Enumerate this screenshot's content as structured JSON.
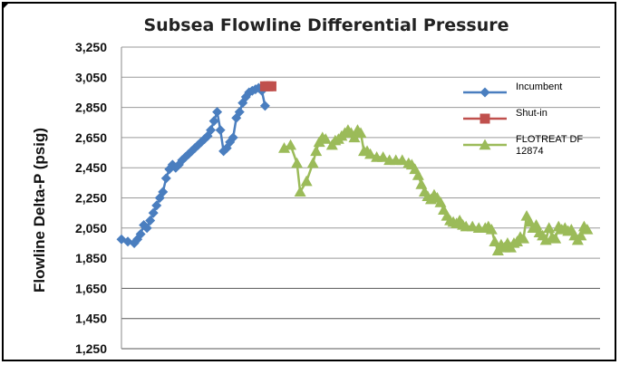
{
  "chart_data": {
    "type": "line",
    "title": "Subsea Flowline Differential Pressure",
    "ylabel": "Flowline Delta-P (psig)",
    "xlabel": "",
    "ylim": [
      1250,
      3250
    ],
    "yticks": [
      1250,
      1450,
      1650,
      1850,
      2050,
      2250,
      2450,
      2650,
      2850,
      3050,
      3250
    ],
    "ytick_labels": [
      "1,250",
      "1,450",
      "1,650",
      "1,850",
      "2,050",
      "2,250",
      "2,450",
      "2,650",
      "2,850",
      "3,050",
      "3,250"
    ],
    "x_axis_labels": false,
    "grid": "horizontal",
    "legend_position": "right",
    "series": [
      {
        "name": "Incumbent",
        "color": "#4a7ebf",
        "marker": "diamond",
        "values": [
          [
            0,
            1975
          ],
          [
            2,
            1960
          ],
          [
            4,
            1950
          ],
          [
            5,
            1975
          ],
          [
            6,
            2010
          ],
          [
            7,
            2070
          ],
          [
            8,
            2050
          ],
          [
            9,
            2100
          ],
          [
            10,
            2150
          ],
          [
            11,
            2200
          ],
          [
            12,
            2250
          ],
          [
            13,
            2290
          ],
          [
            14,
            2380
          ],
          [
            15,
            2440
          ],
          [
            16,
            2470
          ],
          [
            17,
            2450
          ],
          [
            18,
            2470
          ],
          [
            19,
            2500
          ],
          [
            20,
            2520
          ],
          [
            21,
            2540
          ],
          [
            22,
            2560
          ],
          [
            23,
            2580
          ],
          [
            24,
            2600
          ],
          [
            25,
            2620
          ],
          [
            26,
            2640
          ],
          [
            27,
            2660
          ],
          [
            28,
            2700
          ],
          [
            29,
            2760
          ],
          [
            30,
            2820
          ],
          [
            31,
            2700
          ],
          [
            32,
            2560
          ],
          [
            33,
            2580
          ],
          [
            34,
            2620
          ],
          [
            35,
            2650
          ],
          [
            36,
            2780
          ],
          [
            37,
            2820
          ],
          [
            38,
            2880
          ],
          [
            39,
            2920
          ],
          [
            40,
            2950
          ],
          [
            41,
            2960
          ],
          [
            42,
            2970
          ],
          [
            43,
            2980
          ],
          [
            44,
            2960
          ],
          [
            45,
            2860
          ]
        ]
      },
      {
        "name": "Shut-in",
        "color": "#c0504d",
        "marker": "square",
        "values": [
          [
            45,
            2990
          ],
          [
            46,
            2990
          ],
          [
            47,
            2990
          ]
        ]
      },
      {
        "name": "FLOTREAT DF 12874",
        "color": "#9bbb59",
        "marker": "triangle",
        "values": [
          [
            51,
            2580
          ],
          [
            53,
            2600
          ],
          [
            55,
            2480
          ],
          [
            56,
            2290
          ],
          [
            58,
            2360
          ],
          [
            60,
            2480
          ],
          [
            61,
            2560
          ],
          [
            62,
            2620
          ],
          [
            63,
            2650
          ],
          [
            64,
            2640
          ],
          [
            66,
            2600
          ],
          [
            67,
            2630
          ],
          [
            68,
            2640
          ],
          [
            69,
            2660
          ],
          [
            70,
            2680
          ],
          [
            71,
            2700
          ],
          [
            72,
            2680
          ],
          [
            73,
            2650
          ],
          [
            74,
            2700
          ],
          [
            75,
            2680
          ],
          [
            76,
            2560
          ],
          [
            77,
            2560
          ],
          [
            78,
            2540
          ],
          [
            80,
            2520
          ],
          [
            82,
            2520
          ],
          [
            84,
            2500
          ],
          [
            86,
            2500
          ],
          [
            88,
            2500
          ],
          [
            90,
            2480
          ],
          [
            91,
            2470
          ],
          [
            92,
            2440
          ],
          [
            93,
            2400
          ],
          [
            94,
            2340
          ],
          [
            95,
            2290
          ],
          [
            96,
            2260
          ],
          [
            97,
            2240
          ],
          [
            98,
            2270
          ],
          [
            99,
            2250
          ],
          [
            100,
            2220
          ],
          [
            101,
            2170
          ],
          [
            102,
            2130
          ],
          [
            103,
            2100
          ],
          [
            104,
            2090
          ],
          [
            105,
            2080
          ],
          [
            106,
            2100
          ],
          [
            107,
            2070
          ],
          [
            108,
            2060
          ],
          [
            110,
            2060
          ],
          [
            112,
            2050
          ],
          [
            114,
            2050
          ],
          [
            115,
            2060
          ],
          [
            116,
            2040
          ],
          [
            117,
            1960
          ],
          [
            118,
            1900
          ],
          [
            119,
            1940
          ],
          [
            120,
            1920
          ],
          [
            121,
            1950
          ],
          [
            122,
            1920
          ],
          [
            123,
            1950
          ],
          [
            124,
            1960
          ],
          [
            125,
            1990
          ],
          [
            126,
            1980
          ],
          [
            127,
            2130
          ],
          [
            128,
            2090
          ],
          [
            129,
            2050
          ],
          [
            130,
            2070
          ],
          [
            131,
            2020
          ],
          [
            132,
            2000
          ],
          [
            133,
            1970
          ],
          [
            134,
            2050
          ],
          [
            135,
            1990
          ],
          [
            136,
            1980
          ],
          [
            137,
            2060
          ],
          [
            138,
            2040
          ],
          [
            139,
            2050
          ],
          [
            140,
            2030
          ],
          [
            141,
            2040
          ],
          [
            142,
            2000
          ],
          [
            143,
            1970
          ],
          [
            144,
            2000
          ],
          [
            145,
            2060
          ],
          [
            146,
            2040
          ]
        ]
      }
    ]
  }
}
